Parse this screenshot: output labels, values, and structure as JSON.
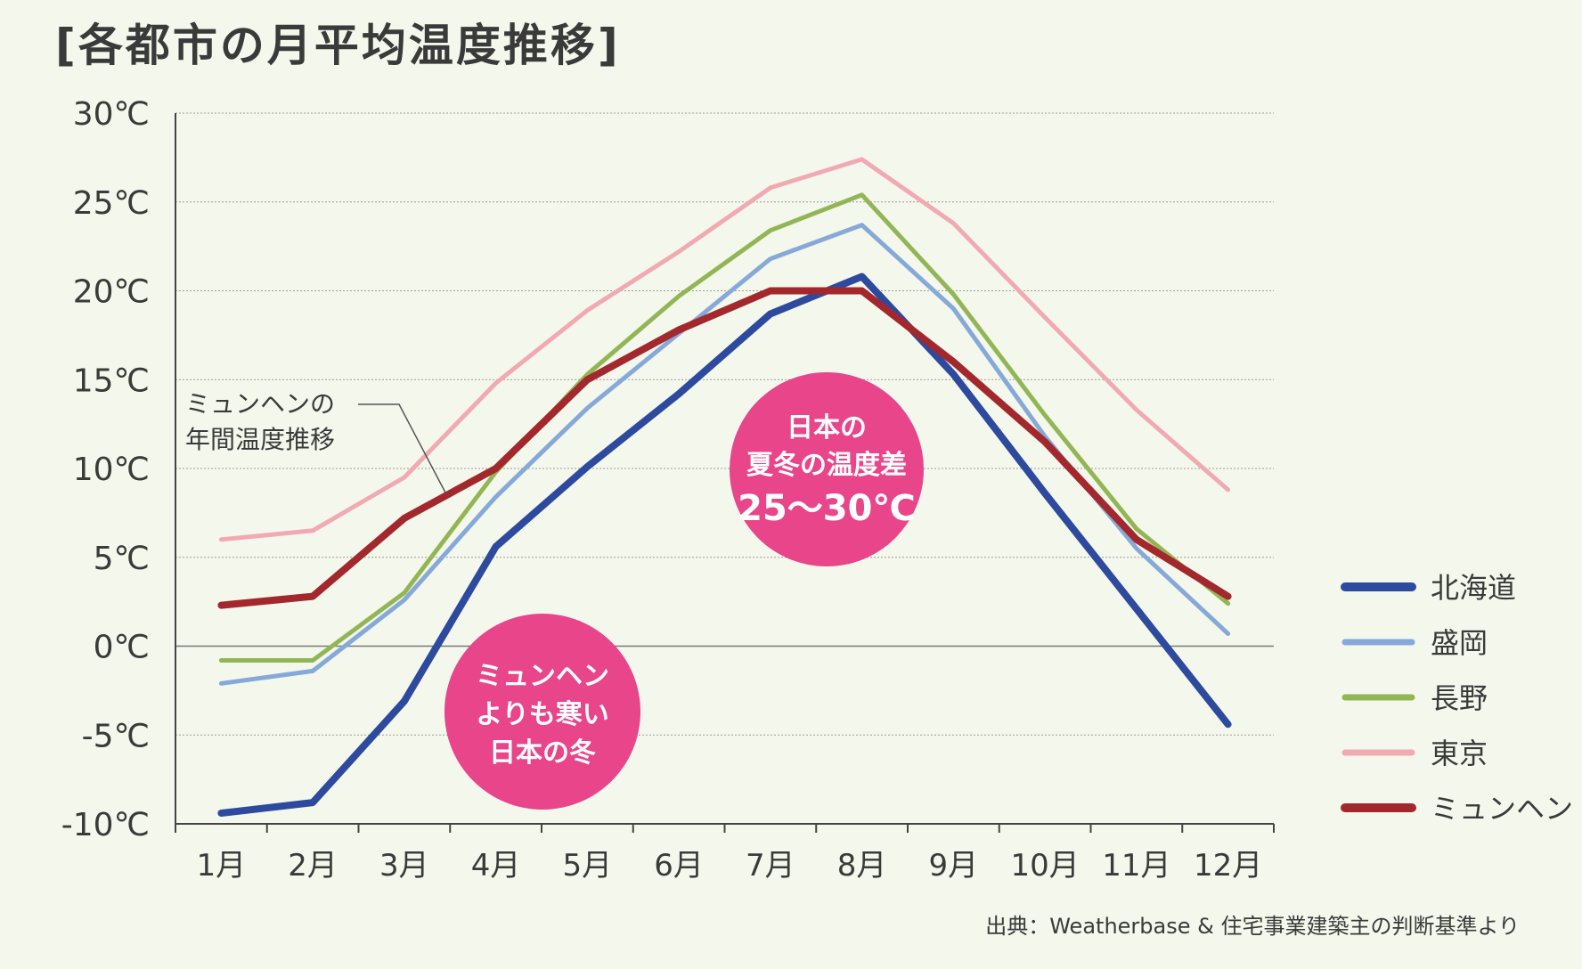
{
  "title": "[各都市の月平均温度推移]",
  "source_note": "出典：Weatherbase & 住宅事業建築主の判断基準より",
  "annotations": {
    "munich_line_label": [
      "ミュンヘンの",
      "年間温度推移"
    ],
    "summer_bubble": [
      "日本の",
      "夏冬の温度差",
      "25〜30℃"
    ],
    "winter_bubble": [
      "ミュンヘン",
      "よりも寒い",
      "日本の冬"
    ]
  },
  "colors": {
    "background": "#f4f8ec",
    "bubble": "#e8458b",
    "grid": "#9a9a9a",
    "zero_line": "#777777",
    "axis": "#444444"
  },
  "chart_data": {
    "type": "line",
    "categories": [
      "1月",
      "2月",
      "3月",
      "4月",
      "5月",
      "6月",
      "7月",
      "8月",
      "9月",
      "10月",
      "11月",
      "12月"
    ],
    "ylim": [
      -10,
      30
    ],
    "yticks": [
      30,
      25,
      20,
      15,
      10,
      5,
      0,
      -5,
      -10
    ],
    "ytick_labels": [
      "30℃",
      "25℃",
      "20℃",
      "15℃",
      "10℃",
      "5℃",
      "0℃",
      "-5℃",
      "-10℃"
    ],
    "grid": true,
    "legend_position": "right",
    "series": [
      {
        "name": "北海道",
        "color": "#2e4a9e",
        "values": [
          -9.4,
          -8.8,
          -3.1,
          5.6,
          10.1,
          14.2,
          18.7,
          20.8,
          15.3,
          8.6,
          2.1,
          -4.4
        ]
      },
      {
        "name": "盛岡",
        "color": "#86a9d9",
        "values": [
          -2.1,
          -1.4,
          2.6,
          8.4,
          13.4,
          17.6,
          21.8,
          23.7,
          19.0,
          11.8,
          5.5,
          0.7
        ]
      },
      {
        "name": "長野",
        "color": "#92b656",
        "values": [
          -0.8,
          -0.8,
          3.0,
          9.8,
          15.3,
          19.7,
          23.4,
          25.4,
          19.8,
          13.0,
          6.6,
          2.4
        ]
      },
      {
        "name": "東京",
        "color": "#f2aab2",
        "values": [
          6.0,
          6.5,
          9.5,
          14.8,
          18.9,
          22.2,
          25.8,
          27.4,
          23.8,
          18.5,
          13.3,
          8.8
        ]
      },
      {
        "name": "ミュンヘン",
        "color": "#a3282d",
        "values": [
          2.3,
          2.8,
          7.2,
          10.0,
          15.0,
          17.8,
          20.0,
          20.0,
          16.0,
          11.5,
          6.0,
          2.8
        ]
      }
    ]
  }
}
